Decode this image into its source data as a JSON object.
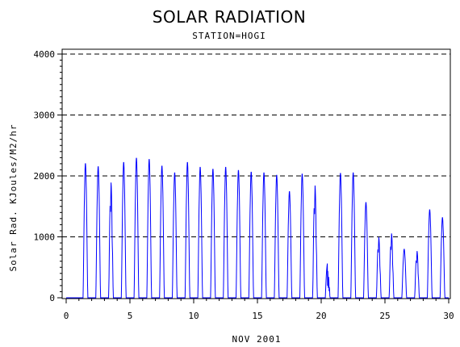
{
  "chart_data": {
    "type": "line",
    "title": "SOLAR RADIATION",
    "subtitle": "STATION=HOGI",
    "xlabel": "NOV 2001",
    "ylabel": "Solar Rad. KJoules/M2/hr",
    "xlim": [
      0,
      30
    ],
    "ylim": [
      0,
      4000
    ],
    "x_ticks": [
      "0",
      "5",
      "10",
      "15",
      "20",
      "25",
      "30"
    ],
    "y_ticks": [
      "0",
      "1000",
      "2000",
      "3000",
      "4000"
    ],
    "grid": "horizontal dashed at 1000, 2000, 3000, 4000",
    "line_color": "#0000ff",
    "daily_peaks": [
      {
        "day": 1,
        "peak": 2210
      },
      {
        "day": 2,
        "peak": 2160
      },
      {
        "day": 3,
        "peak": 1900
      },
      {
        "day": 4,
        "peak": 2230
      },
      {
        "day": 5,
        "peak": 2300
      },
      {
        "day": 6,
        "peak": 2280
      },
      {
        "day": 7,
        "peak": 2170
      },
      {
        "day": 8,
        "peak": 2060
      },
      {
        "day": 9,
        "peak": 2230
      },
      {
        "day": 10,
        "peak": 2150
      },
      {
        "day": 11,
        "peak": 2120
      },
      {
        "day": 12,
        "peak": 2150
      },
      {
        "day": 13,
        "peak": 2100
      },
      {
        "day": 14,
        "peak": 2070
      },
      {
        "day": 15,
        "peak": 2060
      },
      {
        "day": 16,
        "peak": 2020
      },
      {
        "day": 17,
        "peak": 1750
      },
      {
        "day": 18,
        "peak": 2040
      },
      {
        "day": 19,
        "peak": 1850
      },
      {
        "day": 20,
        "peak": 580
      },
      {
        "day": 21,
        "peak": 2050
      },
      {
        "day": 22,
        "peak": 2060
      },
      {
        "day": 23,
        "peak": 1570
      },
      {
        "day": 24,
        "peak": 1000
      },
      {
        "day": 25,
        "peak": 1060
      },
      {
        "day": 26,
        "peak": 800
      },
      {
        "day": 27,
        "peak": 770
      },
      {
        "day": 28,
        "peak": 1450
      },
      {
        "day": 29,
        "peak": 1320
      }
    ]
  }
}
